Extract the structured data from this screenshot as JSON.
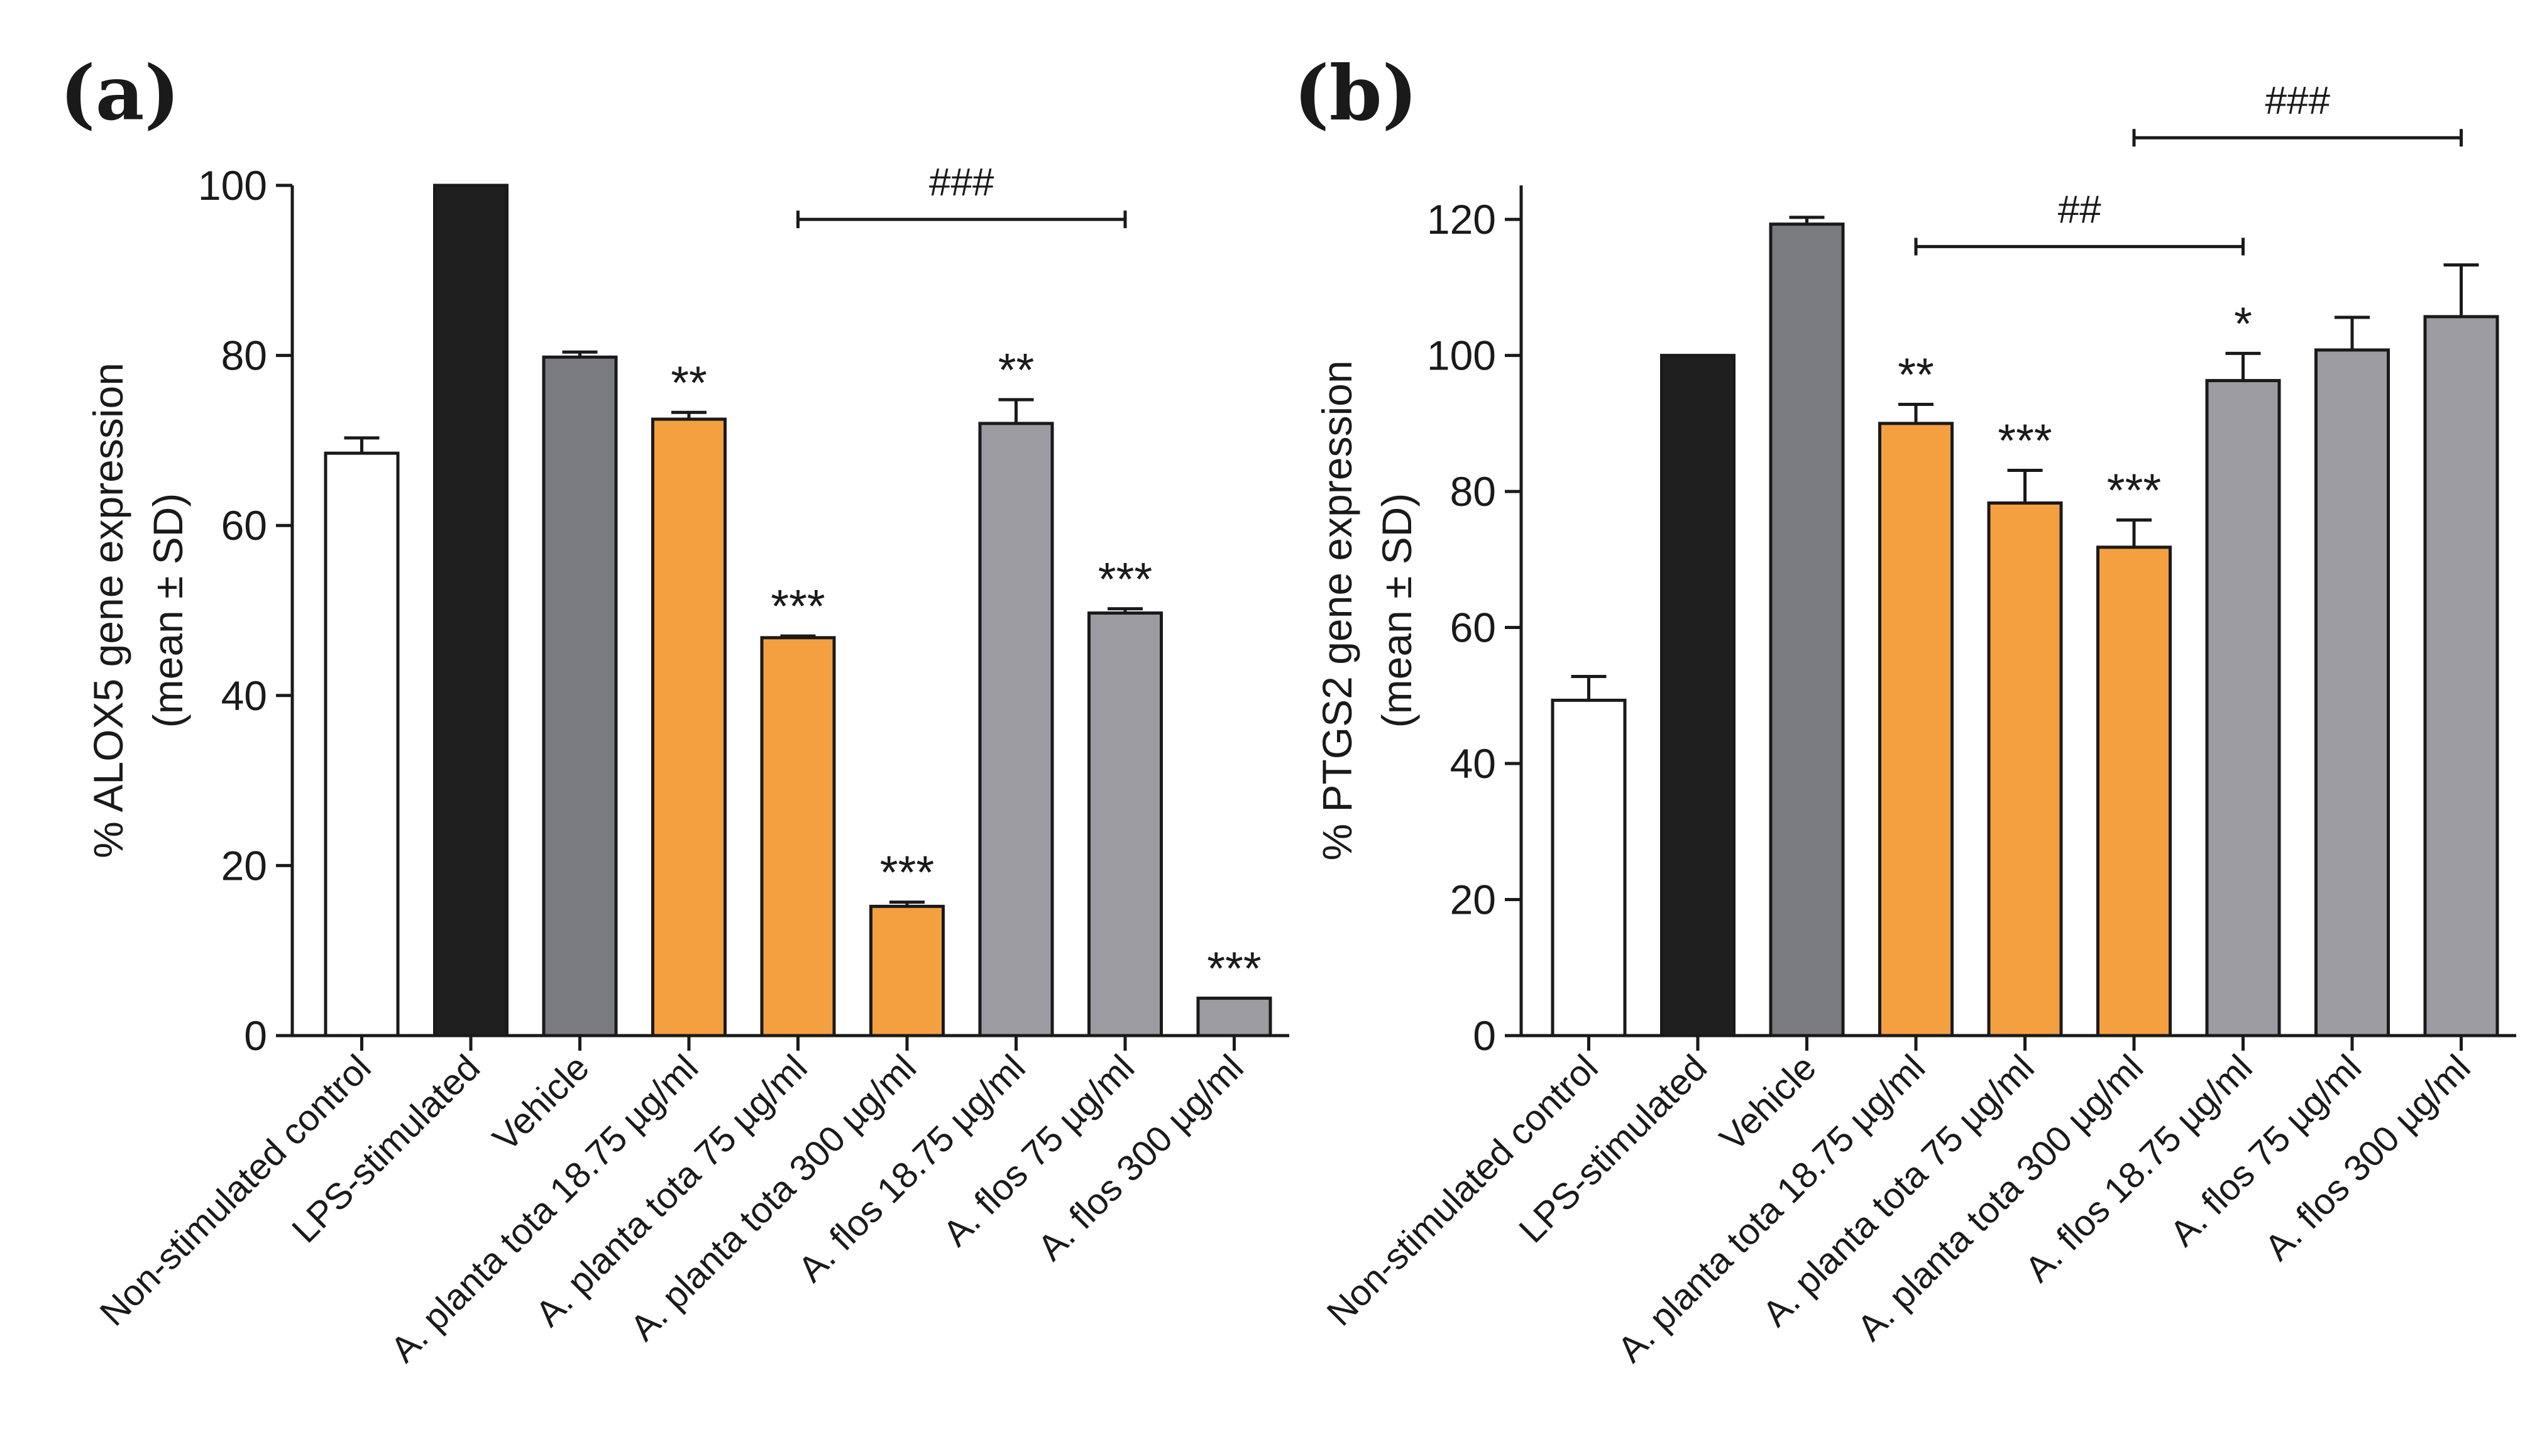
{
  "chart_data": [
    {
      "type": "bar",
      "panel_label": "(a)",
      "ylabel_line1": "% ALOX5 gene expression",
      "ylabel_line2": "(mean ± SD)",
      "ylim": [
        0,
        100
      ],
      "yticks": [
        0,
        20,
        40,
        60,
        80,
        100
      ],
      "categories": [
        "Non-stimulated control",
        "LPS-stimulated",
        "Vehicle",
        "A. planta tota 18.75 µg/ml",
        "A. planta tota 75 µg/ml",
        "A. planta tota 300 µg/ml",
        "A. flos 18.75 µg/ml",
        "A. flos 75 µg/ml",
        "A. flos 300 µg/ml"
      ],
      "values": [
        68.5,
        100,
        79.8,
        72.5,
        46.8,
        15.2,
        72.0,
        49.7,
        4.4
      ],
      "errors": [
        1.8,
        0,
        0.6,
        0.8,
        0.2,
        0.5,
        2.8,
        0.5,
        0
      ],
      "significance": [
        "",
        "",
        "",
        "**",
        "***",
        "***",
        "**",
        "***",
        "***"
      ],
      "colors": [
        "#ffffff",
        "#1f1f1f",
        "#7a7b80",
        "#f5a040",
        "#f5a040",
        "#f5a040",
        "#9c9ca2",
        "#9c9ca2",
        "#9c9ca2"
      ],
      "brackets": [
        {
          "label": "###",
          "from": 5,
          "to": 8,
          "level": 96
        }
      ]
    },
    {
      "type": "bar",
      "panel_label": "(b)",
      "ylabel_line1": "% PTGS2 gene expression",
      "ylabel_line2": "(mean ± SD)",
      "ylim": [
        0,
        125
      ],
      "yticks": [
        0,
        20,
        40,
        60,
        80,
        100,
        120
      ],
      "categories": [
        "Non-stimulated control",
        "LPS-stimulated",
        "Vehicle",
        "A. planta tota 18.75 µg/ml",
        "A. planta tota 75 µg/ml",
        "A. planta tota 300 µg/ml",
        "A. flos 18.75 µg/ml",
        "A. flos 75 µg/ml",
        "A. flos 300 µg/ml"
      ],
      "values": [
        49.3,
        100,
        119.3,
        90.0,
        78.3,
        71.8,
        96.3,
        100.8,
        105.7
      ],
      "errors": [
        3.5,
        0,
        1.0,
        2.8,
        4.8,
        4.0,
        4.0,
        4.8,
        7.6
      ],
      "significance": [
        "",
        "",
        "",
        "**",
        "***",
        "***",
        "*",
        "",
        ""
      ],
      "colors": [
        "#ffffff",
        "#1f1f1f",
        "#7a7b80",
        "#f5a040",
        "#f5a040",
        "#f5a040",
        "#9c9ca2",
        "#9c9ca2",
        "#9c9ca2"
      ],
      "brackets": [
        {
          "label": "##",
          "from": 4,
          "to": 7,
          "level": 116
        },
        {
          "label": "###",
          "from": 6,
          "to": 9,
          "level": 132
        }
      ]
    }
  ]
}
